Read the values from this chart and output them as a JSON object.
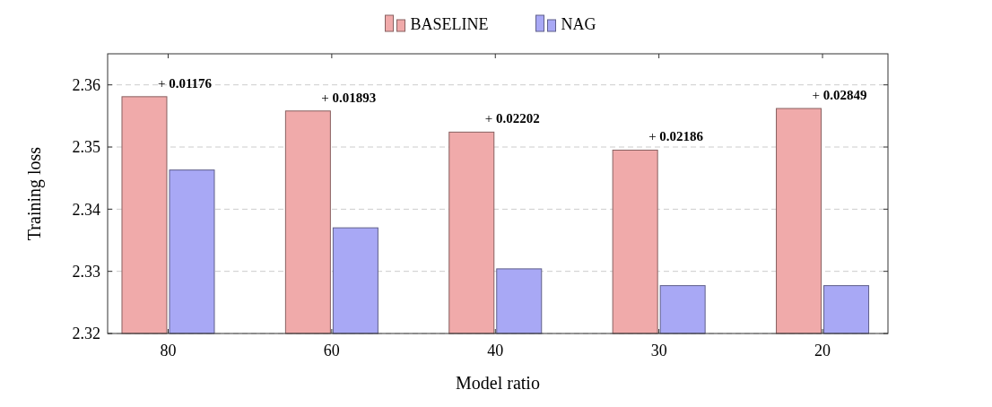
{
  "chart_data": {
    "type": "bar",
    "xlabel": "Model ratio",
    "ylabel": "Training loss",
    "categories": [
      "80",
      "60",
      "40",
      "30",
      "20"
    ],
    "series": [
      {
        "name": "BASELINE",
        "color": "#f0aaaa",
        "values": [
          2.3581,
          2.3558,
          2.3524,
          2.3495,
          2.3562
        ]
      },
      {
        "name": "NAG",
        "color": "#a8a8f5",
        "values": [
          2.3463,
          2.337,
          2.3304,
          2.3277,
          2.3277
        ]
      }
    ],
    "ylim": [
      2.32,
      2.365
    ],
    "yticks": [
      2.32,
      2.33,
      2.34,
      2.35,
      2.36
    ],
    "grid": "y",
    "legend": "top",
    "annotations": [
      {
        "text": "+ 0.01176",
        "x": "80",
        "y": 2.3581
      },
      {
        "text": "+ 0.01893",
        "x": "60",
        "y": 2.3558
      },
      {
        "text": "+ 0.02202",
        "x": "40",
        "y": 2.3524
      },
      {
        "text": "+ 0.02186",
        "x": "30",
        "y": 2.3495
      },
      {
        "text": "+ 0.02849",
        "x": "20",
        "y": 2.3562
      }
    ]
  }
}
